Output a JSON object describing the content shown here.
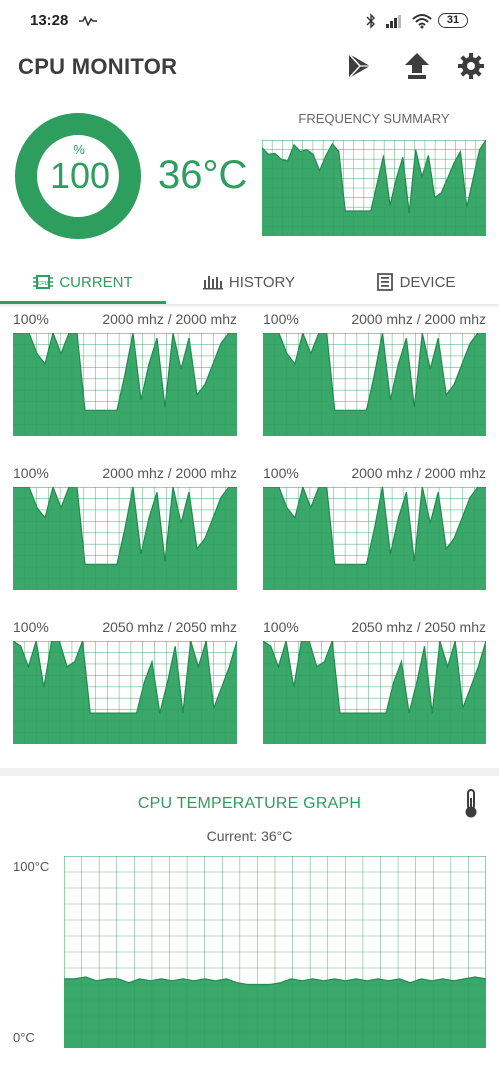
{
  "status_bar": {
    "time": "13:28",
    "battery": "31"
  },
  "header": {
    "title": "CPU MONITOR"
  },
  "summary": {
    "usage_percent_symbol": "%",
    "usage_value": "100",
    "usage_fraction": 1.0,
    "temperature": "36°C",
    "frequency_title": "FREQUENCY SUMMARY"
  },
  "tabs": [
    {
      "label": "CURRENT",
      "icon": "cpu-chip-icon",
      "active": true
    },
    {
      "label": "HISTORY",
      "icon": "bar-chart-icon",
      "active": false
    },
    {
      "label": "DEVICE",
      "icon": "document-icon",
      "active": false
    }
  ],
  "cores": [
    {
      "percent": "100%",
      "frequency": "2000 mhz / 2000 mhz"
    },
    {
      "percent": "100%",
      "frequency": "2000 mhz / 2000 mhz"
    },
    {
      "percent": "100%",
      "frequency": "2000 mhz / 2000 mhz"
    },
    {
      "percent": "100%",
      "frequency": "2000 mhz / 2000 mhz"
    },
    {
      "percent": "100%",
      "frequency": "2050 mhz / 2050 mhz"
    },
    {
      "percent": "100%",
      "frequency": "2050 mhz / 2050 mhz"
    }
  ],
  "temperature_graph": {
    "title": "CPU TEMPERATURE GRAPH",
    "current": "Current: 36°C",
    "y_max_label": "100°C",
    "y_min_label": "0°C",
    "icon": "thermometer-icon"
  },
  "chart_data": [
    {
      "type": "area",
      "name_hint": "frequency-summary",
      "ylim": [
        0,
        100
      ],
      "values": [
        92,
        85,
        86,
        80,
        78,
        95,
        88,
        90,
        85,
        68,
        84,
        96,
        88,
        26,
        26,
        26,
        26,
        26,
        55,
        84,
        32,
        60,
        82,
        24,
        90,
        62,
        84,
        40,
        45,
        60,
        76,
        88,
        30,
        60,
        90,
        100
      ]
    },
    {
      "type": "area",
      "name_hint": "core-usage-pattern-a",
      "ylim": [
        0,
        100
      ],
      "values": [
        100,
        100,
        100,
        80,
        70,
        100,
        80,
        100,
        100,
        25,
        25,
        25,
        25,
        25,
        60,
        100,
        35,
        70,
        95,
        28,
        100,
        65,
        95,
        40,
        50,
        70,
        90,
        100,
        100
      ]
    },
    {
      "type": "area",
      "name_hint": "core-usage-pattern-b",
      "ylim": [
        0,
        100
      ],
      "values": [
        100,
        95,
        75,
        100,
        55,
        100,
        100,
        75,
        80,
        100,
        30,
        30,
        30,
        30,
        30,
        30,
        30,
        60,
        80,
        30,
        60,
        95,
        30,
        100,
        75,
        100,
        35,
        55,
        75,
        100
      ]
    },
    {
      "type": "area",
      "name_hint": "cpu-temperature",
      "ylim": [
        0,
        100
      ],
      "values": [
        36,
        36,
        37,
        35,
        36,
        36,
        34,
        36,
        35,
        36,
        35,
        36,
        35,
        36,
        35,
        36,
        34,
        33,
        33,
        33,
        34,
        36,
        35,
        36,
        35,
        36,
        35,
        36,
        35,
        36,
        35,
        36,
        34,
        36,
        35,
        36,
        35,
        36,
        37,
        36
      ]
    }
  ]
}
